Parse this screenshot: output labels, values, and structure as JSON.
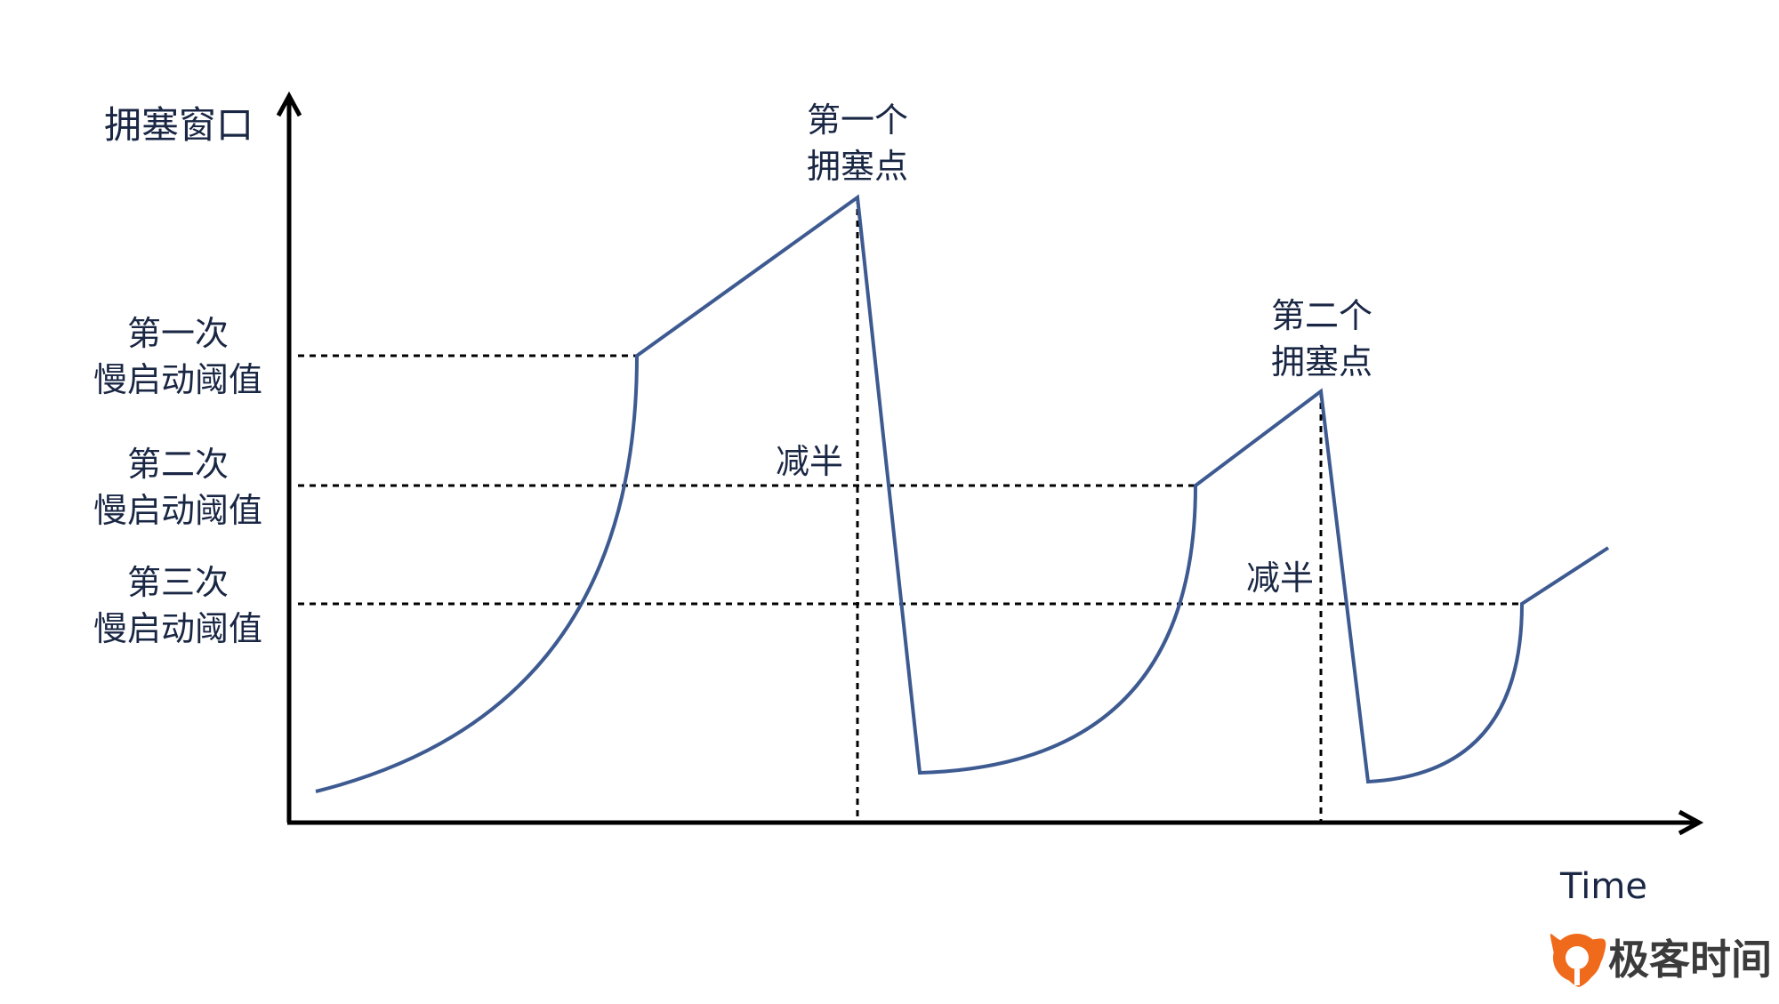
{
  "y_axis_label": "拥塞窗口",
  "x_axis_label": "Time",
  "thresholds": [
    {
      "line1": "第一次",
      "line2": "慢启动阈值"
    },
    {
      "line1": "第二次",
      "line2": "慢启动阈值"
    },
    {
      "line1": "第三次",
      "line2": "慢启动阈值"
    }
  ],
  "congestion_points": [
    {
      "line1": "第一个",
      "line2": "拥塞点"
    },
    {
      "line1": "第二个",
      "line2": "拥塞点"
    }
  ],
  "halve_labels": [
    "减半",
    "减半"
  ],
  "brand": {
    "name": "极客时间",
    "color": "#f06a1b"
  },
  "colors": {
    "curve": "#3d5a91",
    "axis": "#000000",
    "text": "#1a2744"
  }
}
